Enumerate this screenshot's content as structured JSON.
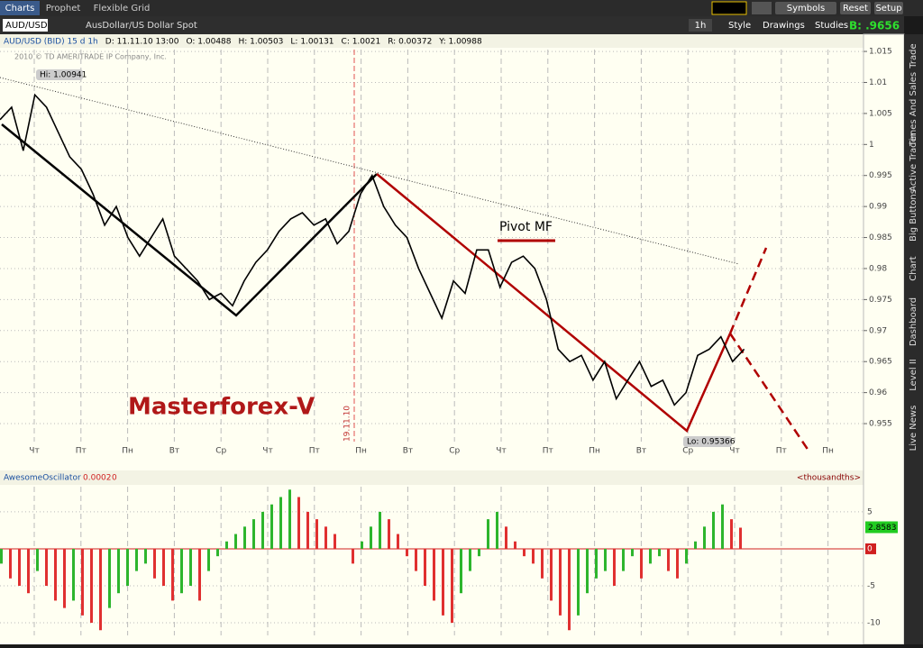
{
  "tabs": [
    "Charts",
    "Prophet",
    "Flexible Grid"
  ],
  "toolbar": {
    "symbol": "AUD/USD",
    "description": "AusDollar/US Dollar Spot",
    "buttons": [
      "Symbols",
      "Reset",
      "Setup"
    ],
    "interval": "1h",
    "chart_buttons": [
      "Style",
      "Drawings",
      "Studies"
    ],
    "bid": "B: .9656"
  },
  "side_tabs": [
    "Trade",
    "Times And Sales",
    "Active Trader",
    "Big Buttons",
    "Chart",
    "Dashboard",
    "Level II",
    "Live News"
  ],
  "chart_data": [
    {
      "type": "line",
      "header": [
        "AUD/USD (BID) 15 d 1h",
        "D: 11.11.10 13:00",
        "O: 1.00488",
        "H: 1.00503",
        "L: 1.00131",
        "C: 1.0021",
        "R: 0.00372",
        "Y: 1.00988"
      ],
      "copyright": "2010 © TD AMERITRADE IP Company, Inc.",
      "annotations": [
        "Hi: 1.00941",
        "Lo: 0.95366",
        "Pivot MF",
        "Masterforex-V",
        "19.11.10"
      ],
      "x_labels": [
        "Чт",
        "Пт",
        "Пн",
        "Вт",
        "Ср",
        "Чт",
        "Пт",
        "Пн",
        "Вт",
        "Ср",
        "Чт",
        "Пт",
        "Пн",
        "Вт",
        "Ср",
        "Чт",
        "Пт",
        "Пн"
      ],
      "color": "#000000",
      "values": [
        1.004,
        1.006,
        0.999,
        1.008,
        1.006,
        1.002,
        0.998,
        0.996,
        0.992,
        0.987,
        0.99,
        0.985,
        0.982,
        0.985,
        0.988,
        0.982,
        0.98,
        0.978,
        0.975,
        0.976,
        0.974,
        0.978,
        0.981,
        0.983,
        0.986,
        0.988,
        0.989,
        0.987,
        0.988,
        0.984,
        0.986,
        0.992,
        0.995,
        0.99,
        0.987,
        0.985,
        0.98,
        0.976,
        0.972,
        0.978,
        0.976,
        0.983,
        0.983,
        0.977,
        0.981,
        0.982,
        0.98,
        0.975,
        0.967,
        0.965,
        0.966,
        0.962,
        0.965,
        0.959,
        0.962,
        0.965,
        0.961,
        0.962,
        0.958,
        0.96,
        0.966,
        0.967,
        0.969,
        0.965,
        0.967
      ],
      "ylim": [
        0.9521,
        1.0153
      ],
      "yticks": [
        1.015,
        1.01,
        1.005,
        1,
        0.995,
        0.99,
        0.985,
        0.98,
        0.975,
        0.97,
        0.965,
        0.96,
        0.955
      ],
      "grid": true
    },
    {
      "type": "bar",
      "title": "AwesomeOscillator",
      "params": [
        "0.0002",
        "0"
      ],
      "units": "<thousandths>",
      "colors": {
        "up": "#2db52d",
        "down": "#e03030"
      },
      "values": [
        -2,
        -4,
        -5,
        -6,
        -3,
        -5,
        -7,
        -8,
        -7,
        -9,
        -10,
        -11,
        -8,
        -6,
        -5,
        -3,
        -2,
        -4,
        -5,
        -7,
        -6,
        -5,
        -7,
        -3,
        -1,
        1,
        2,
        3,
        4,
        5,
        6,
        7,
        8,
        7,
        5,
        4,
        3,
        2,
        0,
        -2,
        1,
        3,
        5,
        4,
        2,
        -1,
        -3,
        -5,
        -7,
        -9,
        -10,
        -6,
        -3,
        -1,
        4,
        5,
        3,
        1,
        -1,
        -2,
        -4,
        -7,
        -9,
        -11,
        -9,
        -6,
        -4,
        -3,
        -5,
        -3,
        -1,
        -4,
        -2,
        -1,
        -3,
        -4,
        -2,
        1,
        3,
        5,
        6,
        4,
        2.8583
      ],
      "ylim": [
        -11.7,
        8.4
      ],
      "yticks": [
        5,
        0,
        -5,
        -10
      ],
      "grid": true
    }
  ]
}
